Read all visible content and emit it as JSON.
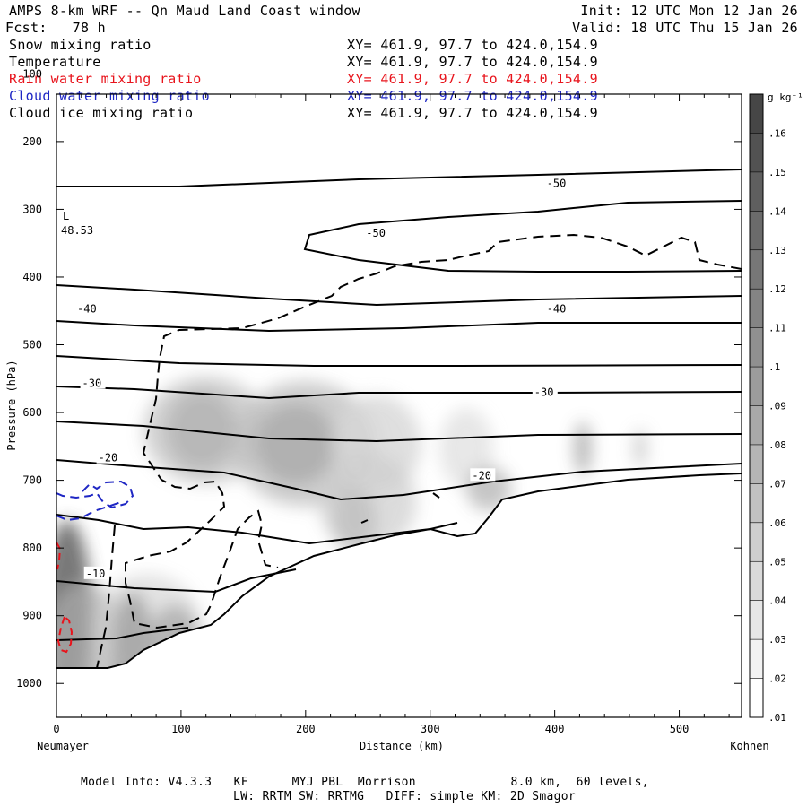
{
  "header": {
    "title": "AMPS 8-km WRF -- Qn Maud Land Coast window",
    "init": "Init: 12 UTC Mon 12 Jan 26",
    "fcst": "Fcst:   78 h",
    "valid": "Valid: 18 UTC Thu 15 Jan 26"
  },
  "fields": [
    {
      "name": "Snow mixing ratio",
      "xy": "XY= 461.9, 97.7 to 424.0,154.9",
      "color": "#000000"
    },
    {
      "name": "Temperature",
      "xy": "XY= 461.9, 97.7 to 424.0,154.9",
      "color": "#000000"
    },
    {
      "name": "Rain water mixing ratio",
      "xy": "XY= 461.9, 97.7 to 424.0,154.9",
      "color": "#e8141c"
    },
    {
      "name": "Cloud water mixing ratio",
      "xy": "XY= 461.9, 97.7 to 424.0,154.9",
      "color": "#1f27c4"
    },
    {
      "name": "Cloud ice mixing ratio",
      "xy": "XY= 461.9, 97.7 to 424.0,154.9",
      "color": "#000000"
    }
  ],
  "footer": {
    "line1": "Model Info: V4.3.3   KF      MYJ PBL  Morrison             8.0 km,  60 levels,",
    "line2": "LW: RRTM SW: RRTMG   DIFF: simple KM: 2D Smagor"
  },
  "chart_data": {
    "type": "contour",
    "xlabel": "Distance (km)",
    "ylabel": "Pressure (hPa)",
    "x_left_label": "Neumayer",
    "x_right_label": "Kohnen",
    "xlim": [
      0,
      550
    ],
    "ylim": [
      1050,
      130
    ],
    "xticks": [
      0,
      100,
      200,
      300,
      400,
      500
    ],
    "yticks": [
      200,
      300,
      400,
      500,
      600,
      700,
      800,
      900,
      1000
    ],
    "colorbar": {
      "unit": "g kg⁻¹",
      "levels": [
        ".16",
        ".15",
        ".14",
        ".13",
        ".12",
        ".11",
        ".1",
        ".09",
        ".08",
        ".07",
        ".06",
        ".05",
        ".04",
        ".03",
        ".02",
        ".01"
      ]
    },
    "low_marker": {
      "label": "L",
      "value": "48.53"
    },
    "temperature_contour_labels": [
      {
        "text": "-50",
        "x": 395,
        "p": 262
      },
      {
        "text": "-50",
        "x": 250,
        "p": 335
      },
      {
        "text": "-40",
        "x": 18,
        "p": 447
      },
      {
        "text": "-40",
        "x": 395,
        "p": 447
      },
      {
        "text": "-30",
        "x": 22,
        "p": 557
      },
      {
        "text": "-30",
        "x": 385,
        "p": 570
      },
      {
        "text": "-20",
        "x": 35,
        "p": 667
      },
      {
        "text": "-20",
        "x": 335,
        "p": 693
      },
      {
        "text": "-10",
        "x": 25,
        "p": 838
      }
    ],
    "snow_maxima": [
      {
        "x": 115,
        "p": 617,
        "value": 0.08
      },
      {
        "x": 190,
        "p": 637,
        "value": 0.09
      },
      {
        "x": 235,
        "p": 760,
        "value": 0.07
      },
      {
        "x": 60,
        "p": 945,
        "value": 0.12
      },
      {
        "x": 10,
        "p": 870,
        "value": 0.09
      }
    ]
  }
}
